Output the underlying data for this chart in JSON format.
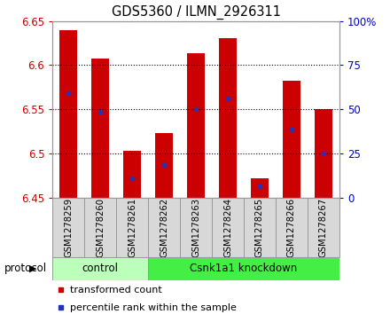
{
  "title": "GDS5360 / ILMN_2926311",
  "samples": [
    "GSM1278259",
    "GSM1278260",
    "GSM1278261",
    "GSM1278262",
    "GSM1278263",
    "GSM1278264",
    "GSM1278265",
    "GSM1278266",
    "GSM1278267"
  ],
  "bar_tops": [
    6.64,
    6.607,
    6.503,
    6.523,
    6.613,
    6.63,
    6.472,
    6.582,
    6.55
  ],
  "bar_bottom": 6.45,
  "blue_marker_values": [
    6.568,
    6.547,
    6.472,
    6.487,
    6.55,
    6.562,
    6.463,
    6.527,
    6.5
  ],
  "ylim_left": [
    6.45,
    6.65
  ],
  "ylim_right": [
    0,
    100
  ],
  "yticks_left": [
    6.45,
    6.5,
    6.55,
    6.6,
    6.65
  ],
  "yticks_right": [
    0,
    25,
    50,
    75,
    100
  ],
  "ytick_labels_right": [
    "0",
    "25",
    "50",
    "75",
    "100%"
  ],
  "bar_color": "#cc0000",
  "blue_color": "#2233bb",
  "left_tick_color": "#cc0000",
  "right_tick_color": "#0000cc",
  "protocol_groups": [
    {
      "label": "control",
      "start": 0,
      "end": 3,
      "color": "#bbffbb"
    },
    {
      "label": "Csnk1a1 knockdown",
      "start": 3,
      "end": 9,
      "color": "#44ee44"
    }
  ],
  "legend_items": [
    {
      "label": "transformed count",
      "color": "#cc0000"
    },
    {
      "label": "percentile rank within the sample",
      "color": "#2233bb"
    }
  ],
  "protocol_label": "protocol",
  "figsize": [
    4.4,
    3.63
  ],
  "dpi": 100
}
